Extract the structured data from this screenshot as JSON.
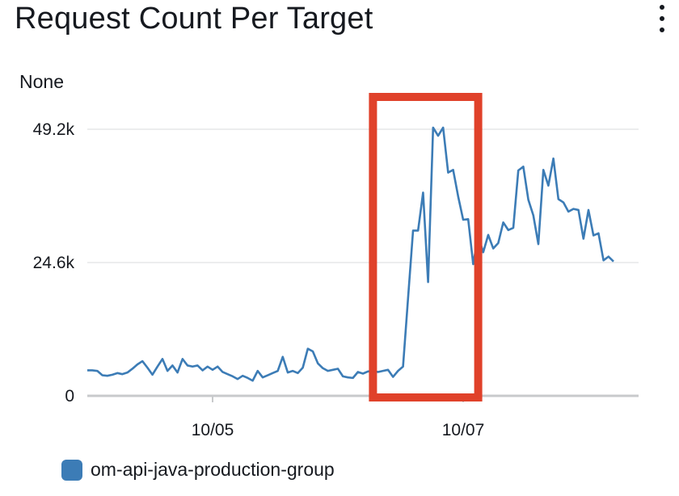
{
  "widget": {
    "title": "Request Count Per Target",
    "unit_label": "None"
  },
  "colors": {
    "series": "#3c7cb6",
    "highlight_box": "#e0412a",
    "grid": "#e6e7e8",
    "axis": "#c8cacc"
  },
  "chart_data": {
    "type": "line",
    "title": "Request Count Per Target",
    "ylabel": "None",
    "xlabel": "",
    "ylim": [
      0,
      49200
    ],
    "y_ticks": [
      {
        "value": 0,
        "label": "0"
      },
      {
        "value": 24600,
        "label": "24.6k"
      },
      {
        "value": 49200,
        "label": "49.2k"
      }
    ],
    "x_range": [
      0,
      110
    ],
    "x_ticks": [
      {
        "value": 25,
        "label": "10/05"
      },
      {
        "value": 75,
        "label": "10/07"
      }
    ],
    "grid": true,
    "legend_position": "bottom-left",
    "series": [
      {
        "name": "om-api-java-production-group",
        "color": "#3c7cb6",
        "values": [
          4700,
          4700,
          4600,
          3800,
          3700,
          3900,
          4200,
          4000,
          4300,
          5000,
          5800,
          6400,
          5200,
          3900,
          5400,
          6800,
          4600,
          5600,
          4300,
          6800,
          5600,
          5400,
          5600,
          4700,
          5400,
          4800,
          5400,
          4400,
          4000,
          3600,
          3100,
          3700,
          3300,
          2800,
          4600,
          3400,
          3800,
          4200,
          4600,
          7200,
          4300,
          4600,
          4200,
          5200,
          8700,
          8200,
          6000,
          5100,
          4600,
          4800,
          5000,
          3600,
          3400,
          3300,
          4400,
          4100,
          4500,
          4600,
          4400,
          4600,
          4800,
          3500,
          4600,
          5400,
          18000,
          30500,
          30500,
          37500,
          21000,
          49500,
          48000,
          49500,
          41200,
          41700,
          36800,
          32500,
          32600,
          24300,
          29500,
          26500,
          29700,
          27200,
          28200,
          32000,
          30600,
          31000,
          41600,
          42300,
          36200,
          33300,
          28000,
          41700,
          38800,
          43800,
          36300,
          35700,
          34000,
          34500,
          34300,
          29000,
          34300,
          29600,
          30000,
          25000,
          25700,
          24800
        ]
      }
    ],
    "highlight_box": {
      "x_start": 57,
      "x_end": 78
    }
  }
}
